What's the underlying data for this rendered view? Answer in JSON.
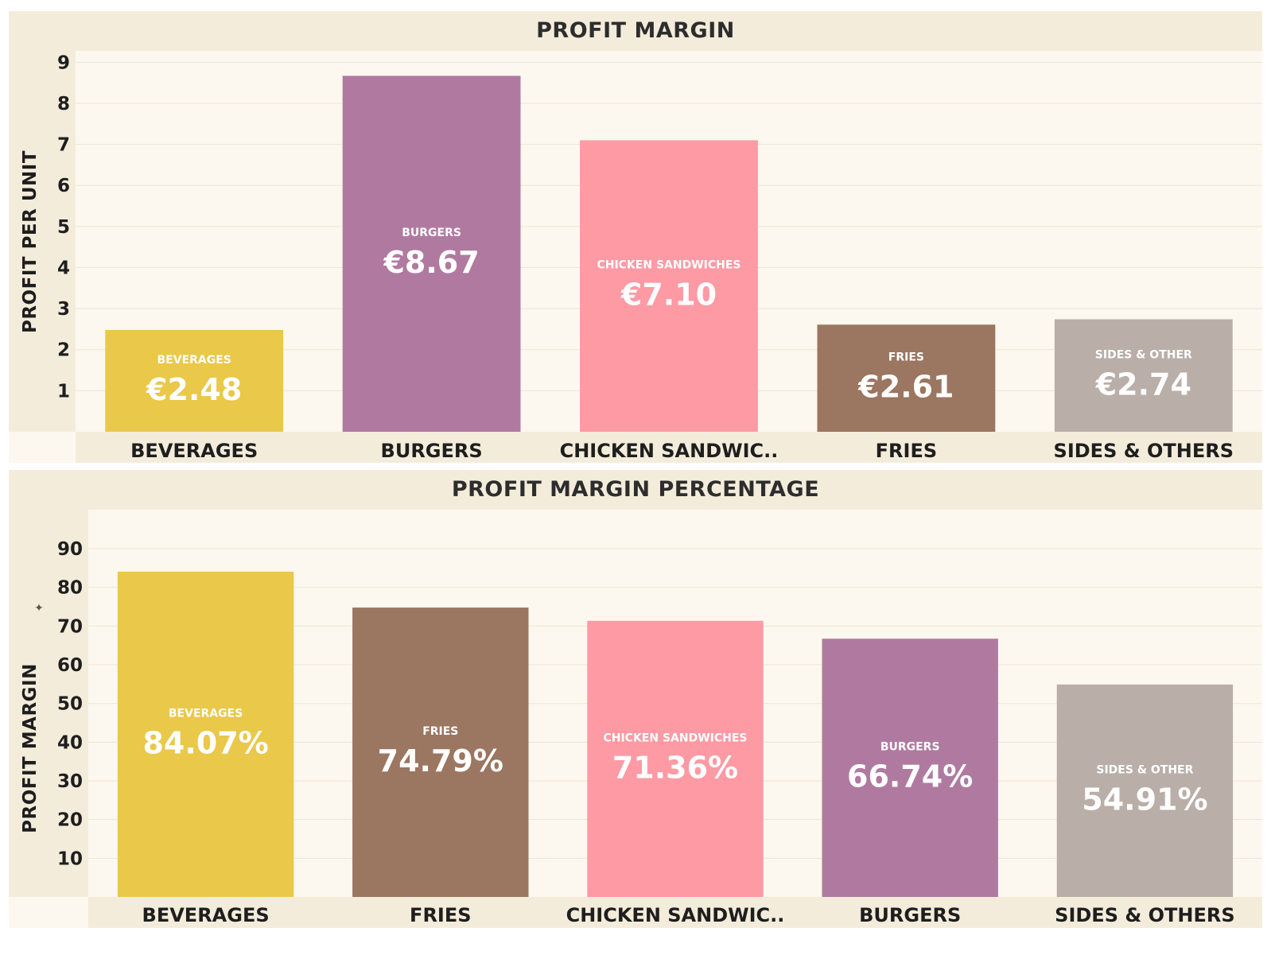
{
  "chart_data": [
    {
      "type": "bar",
      "title": "PROFIT MARGIN",
      "xlabel": "",
      "ylabel": "PROFIT PER UNIT",
      "ylim": [
        0,
        9.2
      ],
      "yticks": [
        1,
        2,
        3,
        4,
        5,
        6,
        7,
        8,
        9
      ],
      "categories": [
        "BEVERAGES",
        "BURGERS",
        "CHICKEN SANDWIC..",
        "FRIES",
        "SIDES & OTHERS"
      ],
      "inner_labels": [
        "BEVERAGES",
        "BURGERS",
        "CHICKEN SANDWICHES",
        "FRIES",
        "SIDES & OTHER"
      ],
      "values": [
        2.48,
        8.67,
        7.1,
        2.61,
        2.74
      ],
      "value_labels": [
        "€2.48",
        "€8.67",
        "€7.10",
        "€2.61",
        "€2.74"
      ],
      "colors": [
        "#e9c84a",
        "#b07aa0",
        "#fd9aa4",
        "#9b7660",
        "#b9aea8"
      ]
    },
    {
      "type": "bar",
      "title": "PROFIT MARGIN PERCENTAGE",
      "xlabel": "",
      "ylabel": "PROFIT MARGIN",
      "ylim": [
        0,
        97
      ],
      "yticks": [
        10,
        20,
        30,
        40,
        50,
        60,
        70,
        80,
        90
      ],
      "categories": [
        "BEVERAGES",
        "FRIES",
        "CHICKEN SANDWIC..",
        "BURGERS",
        "SIDES & OTHERS"
      ],
      "inner_labels": [
        "BEVERAGES",
        "FRIES",
        "CHICKEN SANDWICHES",
        "BURGERS",
        "SIDES & OTHER"
      ],
      "values": [
        84.07,
        74.79,
        71.36,
        66.74,
        54.91
      ],
      "value_labels": [
        "84.07%",
        "74.79%",
        "71.36%",
        "66.74%",
        "54.91%"
      ],
      "colors": [
        "#e9c84a",
        "#9b7660",
        "#fd9aa4",
        "#b07aa0",
        "#b9aea8"
      ]
    }
  ]
}
